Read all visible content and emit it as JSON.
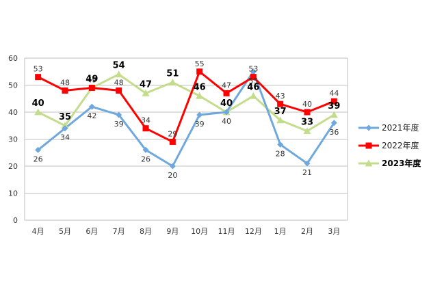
{
  "chart_data": {
    "type": "line",
    "categories": [
      "4月",
      "5月",
      "6月",
      "7月",
      "8月",
      "9月",
      "10月",
      "11月",
      "12月",
      "1月",
      "2月",
      "3月"
    ],
    "ylim": [
      0,
      60
    ],
    "yticks": [
      0,
      10,
      20,
      30,
      40,
      50,
      60
    ],
    "grid": true,
    "legend": "right",
    "series": [
      {
        "name": "2021年度",
        "values": [
          26,
          34,
          42,
          39,
          26,
          20,
          39,
          40,
          55,
          28,
          21,
          36
        ],
        "color": "#6fa8dc",
        "marker": "diamond"
      },
      {
        "name": "2022年度",
        "values": [
          53,
          48,
          49,
          48,
          34,
          29,
          55,
          47,
          53,
          43,
          40,
          44
        ],
        "color": "#ff0000",
        "marker": "square"
      },
      {
        "name": "2023年度",
        "values": [
          40,
          35,
          49,
          54,
          47,
          51,
          46,
          40,
          46,
          37,
          33,
          39
        ],
        "color": "#c4dd8c",
        "marker": "triangle"
      }
    ]
  }
}
